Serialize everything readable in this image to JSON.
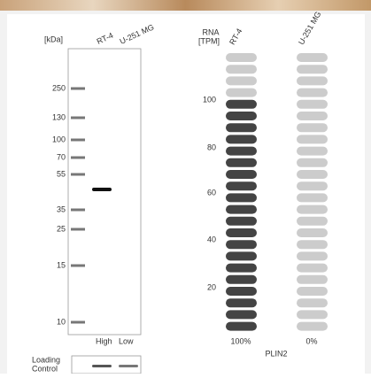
{
  "blot": {
    "unit": "[kDa]",
    "lanes": [
      "RT-4",
      "U-251 MG"
    ],
    "markers": [
      "250",
      "130",
      "100",
      "70",
      "55",
      "35",
      "25",
      "15",
      "10"
    ],
    "footer": [
      "High",
      "Low"
    ],
    "loading": [
      "Loading",
      "Control"
    ]
  },
  "rna": {
    "label": [
      "RNA",
      "[TPM]"
    ],
    "samples": [
      "RT-4",
      "U-251 MG"
    ],
    "ticks": [
      "100",
      "80",
      "60",
      "40",
      "20"
    ],
    "percents": [
      "100%",
      "0%"
    ],
    "gene": "PLIN2"
  }
}
